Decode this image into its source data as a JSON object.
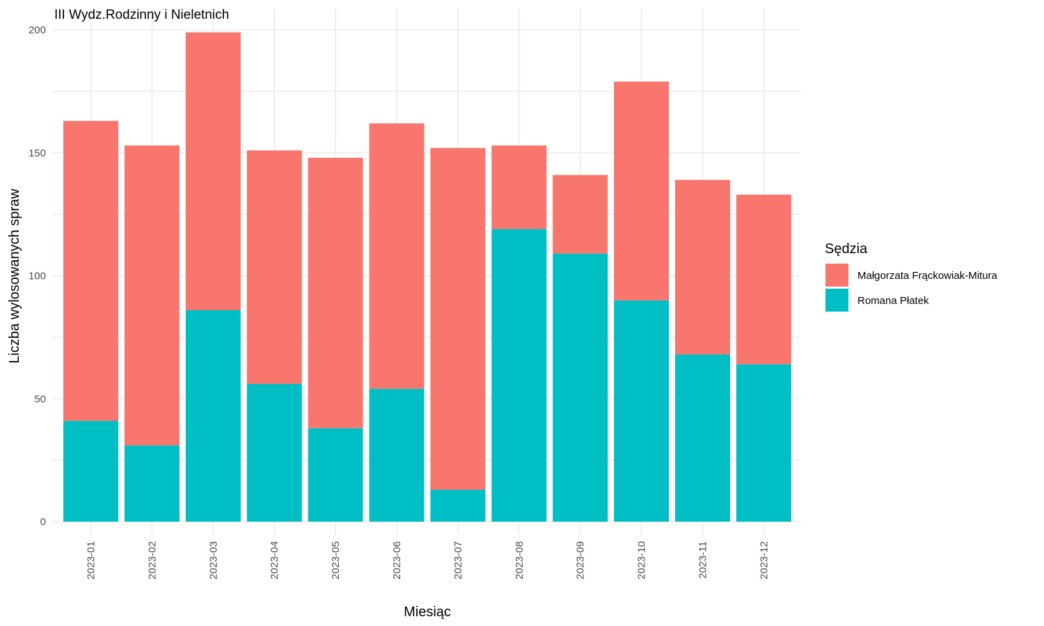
{
  "chart_data": {
    "type": "bar",
    "stacked": true,
    "title": "III Wydz.Rodzinny i Nieletnich",
    "xlabel": "Miesiąc",
    "ylabel": "Liczba wylosowanych spraw",
    "ylim": [
      0,
      200
    ],
    "yticks": [
      0,
      50,
      100,
      150,
      200
    ],
    "grid": true,
    "legend_title": "Sędzia",
    "legend_position": "right",
    "categories": [
      "2023-01",
      "2023-02",
      "2023-03",
      "2023-04",
      "2023-05",
      "2023-06",
      "2023-07",
      "2023-08",
      "2023-09",
      "2023-10",
      "2023-11",
      "2023-12"
    ],
    "series": [
      {
        "name": "Małgorzata Frąckowiak-Mitura",
        "color": "#F8766D",
        "values": [
          122,
          122,
          113,
          95,
          110,
          108,
          139,
          34,
          32,
          89,
          71,
          69
        ]
      },
      {
        "name": "Romana Płatek",
        "color": "#00BFC4",
        "values": [
          41,
          31,
          86,
          56,
          38,
          54,
          13,
          119,
          109,
          90,
          68,
          64
        ]
      }
    ]
  }
}
